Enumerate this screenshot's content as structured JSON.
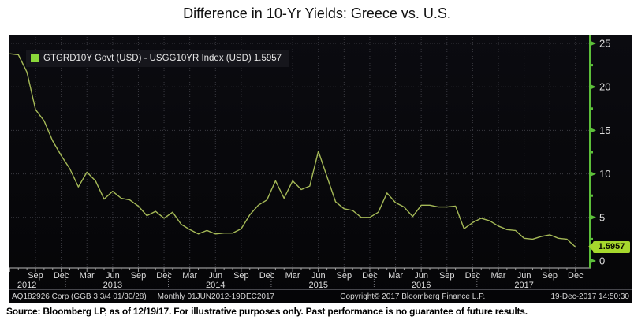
{
  "title": "Difference in 10-Yr Yields: Greece vs. U.S.",
  "legend": {
    "label": "GTGRD10Y Govt (USD) - USGG10YR Index (USD) 1.5957",
    "swatch_color": "#8bd83a"
  },
  "axis_badge": {
    "text": "1.5957",
    "value": 1.5957
  },
  "statusbar": {
    "security": "AQ182926 Corp (GGB 3 3/4 01/30/28)",
    "period": "Monthly 01JUN2012-19DEC2017",
    "copyright": "Copyright© 2017 Bloomberg Finance L.P.",
    "datetime": "19-Dec-2017 14:50:30"
  },
  "footer": {
    "source": "Source: Bloomberg LP, as of 12/19/17. For illustrative purposes only. Past performance is no guarantee of future results."
  },
  "chart_data": {
    "type": "line",
    "title": "Difference in 10-Yr Yields: Greece vs. U.S.",
    "series_name": "GTGRD10Y Govt (USD) - USGG10YR Index (USD)",
    "frequency": "monthly",
    "x_start": "Jun 2012",
    "x_end": "Dec 2017",
    "last_value": 1.5957,
    "values": [
      23.8,
      23.7,
      21.7,
      17.4,
      16.1,
      13.8,
      12.1,
      10.6,
      8.5,
      10.2,
      9.2,
      7.1,
      8.0,
      7.2,
      7.0,
      6.3,
      5.2,
      5.7,
      4.9,
      5.6,
      4.2,
      3.6,
      3.1,
      3.5,
      3.1,
      3.2,
      3.2,
      3.7,
      5.3,
      6.4,
      7.0,
      9.2,
      7.2,
      9.2,
      8.2,
      8.6,
      12.6,
      9.7,
      6.8,
      6.0,
      5.8,
      5.0,
      5.0,
      5.6,
      7.8,
      6.7,
      6.2,
      5.1,
      6.4,
      6.4,
      6.2,
      6.2,
      6.3,
      3.7,
      4.4,
      4.9,
      4.6,
      4.0,
      3.6,
      3.5,
      2.6,
      2.5,
      2.8,
      3.0,
      2.6,
      2.5,
      1.5957
    ],
    "yticks": [
      0,
      5,
      10,
      15,
      20,
      25
    ],
    "y_minor_ticks": [
      2.5,
      7.5,
      12.5,
      17.5,
      22.5
    ],
    "ylim": [
      0,
      26
    ],
    "grid": true,
    "legend_position": "top-left",
    "xticks": [
      {
        "m": 3,
        "label": "Sep"
      },
      {
        "m": 6,
        "label": "Dec"
      },
      {
        "m": 9,
        "label": "Mar"
      },
      {
        "m": 12,
        "label": "Jun"
      },
      {
        "m": 15,
        "label": "Sep"
      },
      {
        "m": 18,
        "label": "Dec"
      },
      {
        "m": 21,
        "label": "Mar"
      },
      {
        "m": 24,
        "label": "Jun"
      },
      {
        "m": 27,
        "label": "Sep"
      },
      {
        "m": 30,
        "label": "Dec"
      },
      {
        "m": 33,
        "label": "Mar"
      },
      {
        "m": 36,
        "label": "Jun"
      },
      {
        "m": 39,
        "label": "Sep"
      },
      {
        "m": 42,
        "label": "Dec"
      },
      {
        "m": 45,
        "label": "Mar"
      },
      {
        "m": 48,
        "label": "Jun"
      },
      {
        "m": 51,
        "label": "Sep"
      },
      {
        "m": 54,
        "label": "Dec"
      },
      {
        "m": 57,
        "label": "Mar"
      },
      {
        "m": 60,
        "label": "Jun"
      },
      {
        "m": 63,
        "label": "Sep"
      },
      {
        "m": 66,
        "label": "Dec"
      }
    ],
    "year_labels": [
      {
        "m": 2,
        "label": "2012"
      },
      {
        "m": 12,
        "label": "2013"
      },
      {
        "m": 24,
        "label": "2014"
      },
      {
        "m": 36,
        "label": "2015"
      },
      {
        "m": 48,
        "label": "2016"
      },
      {
        "m": 60,
        "label": "2017"
      }
    ],
    "colors": {
      "line": "#a5b957",
      "axis_green": "#5dbf3a",
      "grid": "#3a3a41",
      "x_axis": "#b9b9b9",
      "tick_text": "#dedede",
      "panel_bg": "#060609"
    }
  }
}
